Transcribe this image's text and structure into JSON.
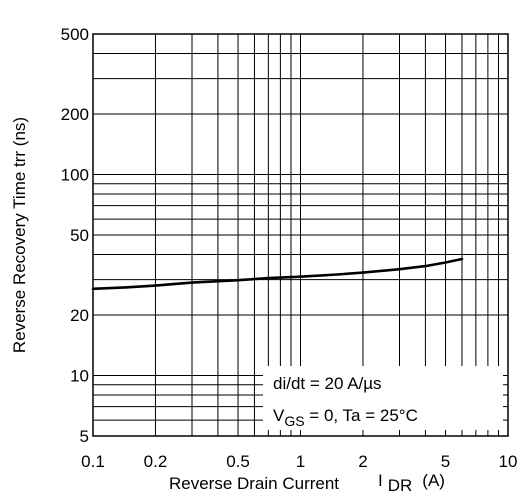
{
  "chart_data": {
    "type": "line",
    "title": "",
    "xlabel": "Reverse Drain Current",
    "xlabel_symbol": "I",
    "xlabel_sub": "DR",
    "xlabel_unit": "(A)",
    "ylabel": "Reverse Recovery Time  trr  (ns)",
    "x_scale": "log",
    "y_scale": "log",
    "xlim": [
      0.1,
      10
    ],
    "ylim": [
      5,
      500
    ],
    "x_ticks": [
      0.1,
      0.2,
      0.5,
      1,
      2,
      5,
      10
    ],
    "x_tick_labels": [
      "0.1",
      "0.2",
      "0.5",
      "1",
      "2",
      "5",
      "10"
    ],
    "y_ticks": [
      5,
      10,
      20,
      50,
      100,
      200,
      500
    ],
    "y_tick_labels": [
      "5",
      "10",
      "20",
      "50",
      "100",
      "200",
      "500"
    ],
    "grid": true,
    "series": [
      {
        "x": [
          0.1,
          0.15,
          0.2,
          0.3,
          0.5,
          0.7,
          1,
          1.5,
          2,
          3,
          4,
          5,
          6
        ],
        "y": [
          27,
          27.5,
          28,
          29,
          29.8,
          30.5,
          31,
          31.8,
          32.5,
          33.8,
          35,
          36.5,
          38
        ]
      }
    ],
    "annotations": [
      {
        "line1": "di/dt = 20 A/µs"
      },
      {
        "v": "V",
        "sub": "GS",
        "rest": " = 0,  Ta = 25°C"
      }
    ]
  }
}
